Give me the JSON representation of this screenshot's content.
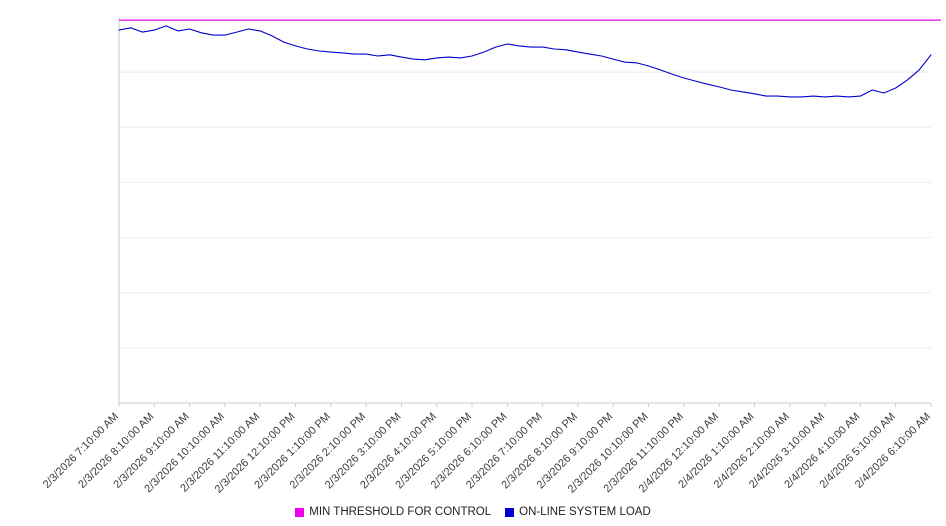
{
  "chart_data": {
    "type": "line",
    "title": "",
    "xlabel": "",
    "ylabel": "",
    "ylim": [
      0,
      100
    ],
    "y_tick_labels": [],
    "grid": "horizontal",
    "gridline_count": 8,
    "legend_position": "bottom",
    "x_tick_labels": [
      "2/3/2026 7:10:00 AM",
      "2/3/2026 8:10:00 AM",
      "2/3/2026 9:10:00 AM",
      "2/3/2026 10:10:00 AM",
      "2/3/2026 11:10:00 AM",
      "2/3/2026 12:10:00 PM",
      "2/3/2026 1:10:00 PM",
      "2/3/2026 2:10:00 PM",
      "2/3/2026 3:10:00 PM",
      "2/3/2026 4:10:00 PM",
      "2/3/2026 5:10:00 PM",
      "2/3/2026 6:10:00 PM",
      "2/3/2026 7:10:00 PM",
      "2/3/2026 8:10:00 PM",
      "2/3/2026 9:10:00 PM",
      "2/3/2026 10:10:00 PM",
      "2/3/2026 11:10:00 PM",
      "2/4/2026 12:10:00 AM",
      "2/4/2026 1:10:00 AM",
      "2/4/2026 2:10:00 AM",
      "2/4/2026 3:10:00 AM",
      "2/4/2026 4:10:00 AM",
      "2/4/2026 5:10:00 AM",
      "2/4/2026 6:10:00 AM"
    ],
    "series": [
      {
        "name": "MIN THRESHOLD FOR CONTROL",
        "color": "#ee00ee",
        "constant": 99.2
      },
      {
        "name": "ON-LINE SYSTEM LOAD",
        "color": "#0000cd",
        "values": [
          96.6,
          97.2,
          96.1,
          96.6,
          97.7,
          96.4,
          96.9,
          95.9,
          95.3,
          95.3,
          96.1,
          96.9,
          96.4,
          95.1,
          93.5,
          92.5,
          91.7,
          91.2,
          90.9,
          90.7,
          90.4,
          90.4,
          89.9,
          90.2,
          89.6,
          89.1,
          88.9,
          89.4,
          89.6,
          89.4,
          89.9,
          90.9,
          92.2,
          93.0,
          92.5,
          92.2,
          92.2,
          91.7,
          91.5,
          90.9,
          90.4,
          89.9,
          89.1,
          88.3,
          88.1,
          87.3,
          86.3,
          85.2,
          84.2,
          83.4,
          82.6,
          81.9,
          81.1,
          80.6,
          80.1,
          79.5,
          79.5,
          79.3,
          79.3,
          79.5,
          79.3,
          79.5,
          79.3,
          79.5,
          81.1,
          80.3,
          81.6,
          83.7,
          86.3,
          90.2
        ]
      }
    ]
  },
  "colors": {
    "gridline": "#ececec",
    "axis": "#cccccc",
    "tick_label": "#3d3d3d"
  }
}
